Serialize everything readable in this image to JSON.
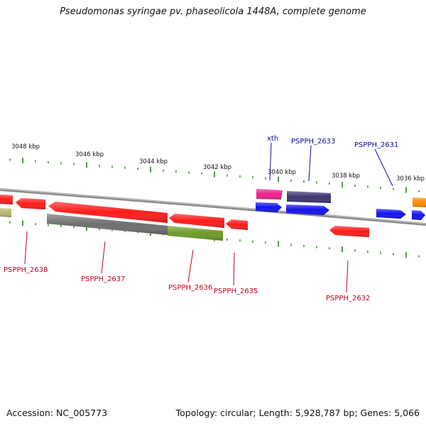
{
  "title": "Pseudomonas syringae pv. phaseolicola 1448A, complete genome",
  "footer": {
    "accession": "Accession: NC_005773",
    "summary": "Topology: circular; Length: 5,928,787 bp; Genes: 5,066"
  },
  "colors": {
    "backbone": "#8c8c8c",
    "tick": "#2e7d1e",
    "label_forward": "#0a0a9c",
    "label_reverse": "#c0001a",
    "red": "#ff1a1a",
    "gray": "#6e6e6e",
    "olive": "#6f9a2a",
    "khaki": "#b8b46a",
    "magenta": "#f02090",
    "navy": "#3c3470",
    "blue": "#1212ee",
    "orange": "#ff8c00"
  },
  "scale_labels": [
    "3048 kbp",
    "3046 kbp",
    "3044 kbp",
    "3042 kbp",
    "3040 kbp",
    "3038 kbp",
    "3036 kbp"
  ],
  "gene_labels": {
    "forward": [
      "xth",
      "PSPPH_2633",
      "PSPPH_2631"
    ],
    "reverse": [
      "PSPPH_2638",
      "PSPPH_2637",
      "PSPPH_2636",
      "PSPPH_2635",
      "PSPPH_2632"
    ]
  }
}
